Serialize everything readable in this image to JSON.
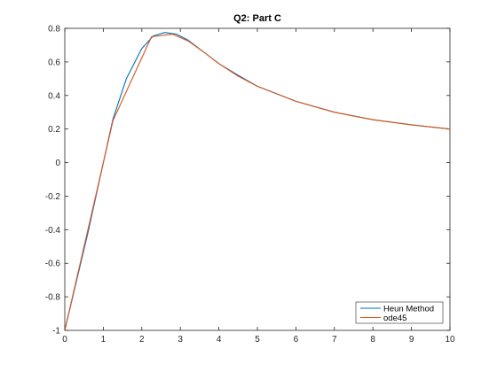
{
  "chart_data": {
    "type": "line",
    "title": "Q2: Part C",
    "xlabel": "",
    "ylabel": "",
    "xlim": [
      0,
      10
    ],
    "ylim": [
      -1,
      0.8
    ],
    "x_ticks": [
      0,
      1,
      2,
      3,
      4,
      5,
      6,
      7,
      8,
      9,
      10
    ],
    "y_ticks": [
      -1,
      -0.8,
      -0.6,
      -0.4,
      -0.2,
      0,
      0.2,
      0.4,
      0.6,
      0.8
    ],
    "grid": false,
    "legend_position": "bottom-right",
    "series": [
      {
        "name": "Heun Method",
        "color": "#0072BD",
        "x": [
          0,
          0.6,
          1.25,
          1.6,
          2.0,
          2.3,
          2.6,
          2.9,
          3.2,
          3.6,
          4.0,
          4.5,
          5.0,
          6.0,
          7.0,
          8.0,
          9.0,
          10.0
        ],
        "y": [
          -1.0,
          -0.42,
          0.26,
          0.5,
          0.68,
          0.755,
          0.775,
          0.765,
          0.73,
          0.66,
          0.59,
          0.52,
          0.455,
          0.365,
          0.3,
          0.255,
          0.225,
          0.2
        ]
      },
      {
        "name": "ode45",
        "color": "#D95319",
        "x": [
          0,
          1.25,
          2.25,
          2.8,
          3.2,
          3.6,
          4.0,
          4.5,
          5.0,
          6.0,
          7.0,
          8.0,
          9.0,
          10.0
        ],
        "y": [
          -1.0,
          0.25,
          0.75,
          0.765,
          0.725,
          0.66,
          0.59,
          0.515,
          0.455,
          0.365,
          0.3,
          0.255,
          0.225,
          0.2
        ]
      }
    ]
  }
}
